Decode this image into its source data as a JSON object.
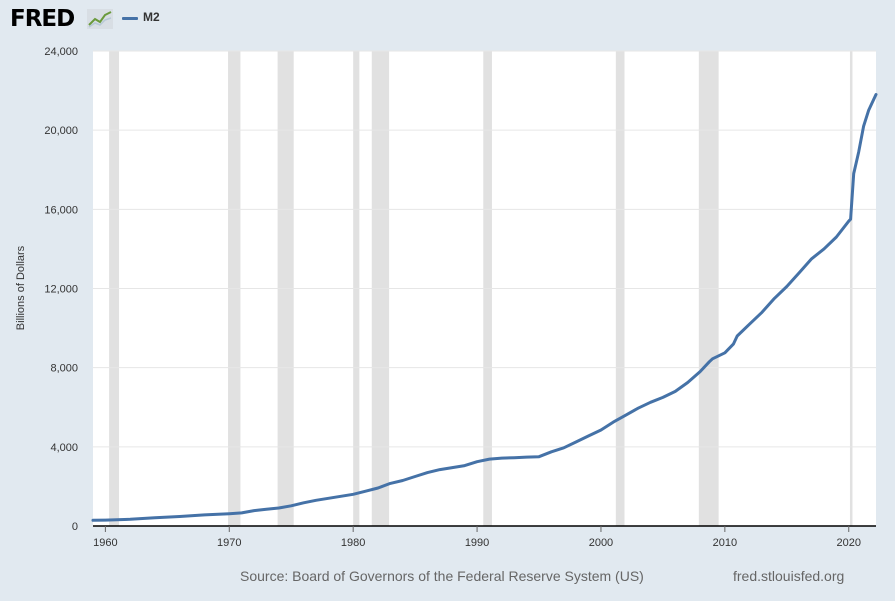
{
  "header": {
    "logo_text": "FRED",
    "logo_icon": "fred-chart-icon",
    "legend_label": "M2"
  },
  "colors": {
    "background": "#e1e9f0",
    "plot_background": "#ffffff",
    "series": "#4572a7",
    "recession": "#e1e1e1",
    "grid": "#e6e6e6"
  },
  "footer": {
    "source": "Source: Board of Governors of the Federal Reserve System (US)",
    "site": "fred.stlouisfed.org"
  },
  "chart_data": {
    "type": "line",
    "title": "",
    "xlabel": "",
    "ylabel": "Billions of Dollars",
    "xlim": [
      1959.0,
      2022.2
    ],
    "ylim": [
      0,
      24000
    ],
    "yticks": [
      0,
      4000,
      8000,
      12000,
      16000,
      20000,
      24000
    ],
    "ytick_labels": [
      "0",
      "4,000",
      "8,000",
      "12,000",
      "16,000",
      "20,000",
      "24,000"
    ],
    "xticks": [
      1960,
      1970,
      1980,
      1990,
      2000,
      2010,
      2020
    ],
    "xtick_labels": [
      "1960",
      "1970",
      "1980",
      "1990",
      "2000",
      "2010",
      "2020"
    ],
    "grid": true,
    "legend_position": "top-left",
    "recessions": [
      [
        1960.3,
        1961.1
      ],
      [
        1969.9,
        1970.9
      ],
      [
        1973.9,
        1975.2
      ],
      [
        1980.0,
        1980.5
      ],
      [
        1981.5,
        1982.9
      ],
      [
        1990.5,
        1991.2
      ],
      [
        2001.2,
        2001.9
      ],
      [
        2007.9,
        2009.5
      ],
      [
        2020.1,
        2020.3
      ]
    ],
    "series": [
      {
        "name": "M2",
        "x": [
          1959.0,
          1960,
          1962,
          1964,
          1966,
          1968,
          1970,
          1971,
          1972,
          1973,
          1974,
          1975,
          1976,
          1977,
          1978,
          1979,
          1980,
          1981,
          1982,
          1983,
          1984,
          1985,
          1986,
          1987,
          1988,
          1989,
          1990,
          1991,
          1992,
          1993,
          1994,
          1995,
          1996,
          1997,
          1998,
          1999,
          2000,
          2001,
          2002,
          2003,
          2004,
          2005,
          2006,
          2007,
          2008,
          2008.75,
          2009,
          2010,
          2010.7,
          2011,
          2012,
          2013,
          2014,
          2015,
          2016,
          2017,
          2018,
          2019,
          2020.0,
          2020.15,
          2020.4,
          2020.8,
          2021.2,
          2021.6,
          2022.2
        ],
        "values": [
          290,
          300,
          340,
          420,
          480,
          560,
          620,
          660,
          780,
          850,
          910,
          1020,
          1170,
          1300,
          1400,
          1500,
          1600,
          1760,
          1920,
          2150,
          2300,
          2500,
          2700,
          2850,
          2950,
          3050,
          3250,
          3380,
          3430,
          3450,
          3480,
          3500,
          3750,
          3950,
          4250,
          4550,
          4850,
          5250,
          5600,
          5950,
          6250,
          6500,
          6800,
          7250,
          7800,
          8300,
          8450,
          8750,
          9200,
          9600,
          10200,
          10800,
          11500,
          12100,
          12800,
          13500,
          14000,
          14600,
          15400,
          15500,
          17800,
          18900,
          20200,
          21000,
          21800
        ]
      }
    ]
  }
}
